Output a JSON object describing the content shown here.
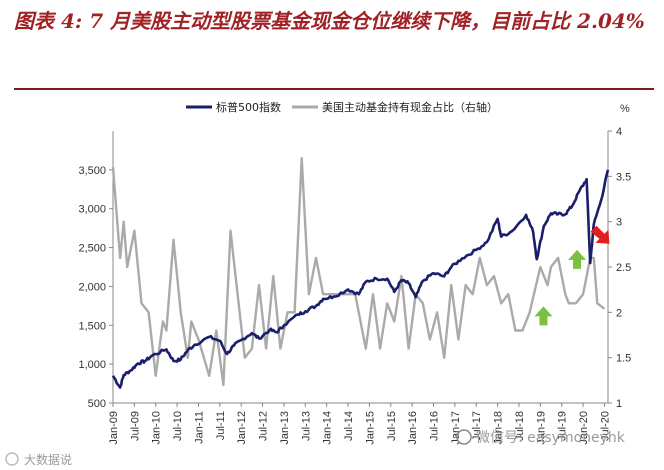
{
  "title": "图表 4: 7 月美股主动型股票基金现金仓位继续下降，目前占比 2.04%",
  "watermark": {
    "left": "大数据说",
    "right": "微信号: easymoneyhk"
  },
  "colors": {
    "title": "#a12225",
    "spx_series": "#1a1f6b",
    "cash_series": "#aaaaaa",
    "arrow_up": "#7bc043",
    "arrow_down": "#e02020"
  },
  "chart_data": {
    "type": "line",
    "legend": [
      "标普500指数",
      "美国主动基金持有现金占比（右轴）"
    ],
    "legend_position": "top-center",
    "grid": false,
    "x_ticks": [
      "Jan-09",
      "Jul-09",
      "Jan-10",
      "Jul-10",
      "Jan-11",
      "Jul-11",
      "Jan-12",
      "Jul-12",
      "Jan-13",
      "Jul-13",
      "Jan-14",
      "Jul-14",
      "Jan-15",
      "Jul-15",
      "Jan-16",
      "Jul-16",
      "Jan-17",
      "Jul-17",
      "Jan-18",
      "Jul-18",
      "Jan-19",
      "Jul-19",
      "Jan-20",
      "Jul-20"
    ],
    "x_range": [
      "Jan-09",
      "Aug-20"
    ],
    "left_axis": {
      "ylim": [
        500,
        4000
      ],
      "ticks": [
        "500",
        "1,000",
        "1,500",
        "2,000",
        "2,500",
        "3,000",
        "3,500"
      ]
    },
    "right_axis": {
      "ylim": [
        1,
        4
      ],
      "ticks": [
        "1",
        "1.5",
        "2",
        "2.5",
        "3",
        "3.5",
        "4"
      ],
      "unit": "%"
    },
    "series": [
      {
        "name": "标普500指数",
        "axis": "left",
        "points": [
          [
            "Jan-09",
            850
          ],
          [
            "Mar-09",
            700
          ],
          [
            "Apr-09",
            860
          ],
          [
            "Jun-09",
            920
          ],
          [
            "Aug-09",
            1010
          ],
          [
            "Oct-09",
            1040
          ],
          [
            "Dec-09",
            1110
          ],
          [
            "Apr-10",
            1190
          ],
          [
            "Jun-10",
            1040
          ],
          [
            "Aug-10",
            1060
          ],
          [
            "Oct-10",
            1180
          ],
          [
            "Dec-10",
            1250
          ],
          [
            "Apr-11",
            1350
          ],
          [
            "Jul-11",
            1300
          ],
          [
            "Sep-11",
            1130
          ],
          [
            "Nov-11",
            1240
          ],
          [
            "Jan-12",
            1310
          ],
          [
            "Apr-12",
            1400
          ],
          [
            "Jun-12",
            1330
          ],
          [
            "Sep-12",
            1440
          ],
          [
            "Nov-12",
            1410
          ],
          [
            "Jan-13",
            1500
          ],
          [
            "May-13",
            1640
          ],
          [
            "Jul-13",
            1680
          ],
          [
            "Oct-13",
            1750
          ],
          [
            "Dec-13",
            1840
          ],
          [
            "Mar-14",
            1870
          ],
          [
            "Jul-14",
            1960
          ],
          [
            "Oct-14",
            1900
          ],
          [
            "Dec-14",
            2060
          ],
          [
            "Mar-15",
            2100
          ],
          [
            "Jun-15",
            2100
          ],
          [
            "Aug-15",
            1930
          ],
          [
            "Oct-15",
            2080
          ],
          [
            "Dec-15",
            2040
          ],
          [
            "Feb-16",
            1860
          ],
          [
            "Apr-16",
            2070
          ],
          [
            "Jul-16",
            2170
          ],
          [
            "Oct-16",
            2130
          ],
          [
            "Dec-16",
            2250
          ],
          [
            "Mar-17",
            2360
          ],
          [
            "Jul-17",
            2470
          ],
          [
            "Oct-17",
            2570
          ],
          [
            "Jan-18",
            2870
          ],
          [
            "Feb-18",
            2640
          ],
          [
            "May-18",
            2710
          ],
          [
            "Sep-18",
            2920
          ],
          [
            "Nov-18",
            2700
          ],
          [
            "Dec-18",
            2350
          ],
          [
            "Feb-19",
            2780
          ],
          [
            "Apr-19",
            2940
          ],
          [
            "Jun-19",
            2930
          ],
          [
            "Aug-19",
            2930
          ],
          [
            "Oct-19",
            3040
          ],
          [
            "Dec-19",
            3230
          ],
          [
            "Feb-20",
            3380
          ],
          [
            "Mar-20",
            2300
          ],
          [
            "Apr-20",
            2800
          ],
          [
            "Jun-20",
            3100
          ],
          [
            "Aug-20",
            3500
          ]
        ]
      },
      {
        "name": "美国主动基金持有现金占比（右轴）",
        "axis": "right",
        "points": [
          [
            "Jan-09",
            3.6
          ],
          [
            "Mar-09",
            2.6
          ],
          [
            "Apr-09",
            3.0
          ],
          [
            "May-09",
            2.5
          ],
          [
            "Jul-09",
            2.9
          ],
          [
            "Sep-09",
            2.1
          ],
          [
            "Nov-09",
            2.0
          ],
          [
            "Jan-10",
            1.3
          ],
          [
            "Mar-10",
            1.9
          ],
          [
            "Apr-10",
            1.8
          ],
          [
            "Jun-10",
            2.8
          ],
          [
            "Aug-10",
            2.0
          ],
          [
            "Oct-10",
            1.5
          ],
          [
            "Nov-10",
            1.9
          ],
          [
            "Jan-11",
            1.7
          ],
          [
            "Apr-11",
            1.3
          ],
          [
            "Jun-11",
            1.8
          ],
          [
            "Aug-11",
            1.2
          ],
          [
            "Oct-11",
            2.9
          ],
          [
            "Dec-11",
            2.2
          ],
          [
            "Feb-12",
            1.5
          ],
          [
            "Apr-12",
            1.6
          ],
          [
            "Jun-12",
            2.3
          ],
          [
            "Aug-12",
            1.6
          ],
          [
            "Oct-12",
            2.4
          ],
          [
            "Dec-12",
            1.6
          ],
          [
            "Feb-13",
            2.0
          ],
          [
            "Apr-13",
            2.0
          ],
          [
            "Jun-13",
            3.7
          ],
          [
            "Aug-13",
            2.2
          ],
          [
            "Oct-13",
            2.6
          ],
          [
            "Dec-13",
            2.2
          ],
          [
            "Mar-14",
            2.2
          ],
          [
            "Jun-14",
            2.2
          ],
          [
            "Sep-14",
            2.2
          ],
          [
            "Dec-14",
            1.6
          ],
          [
            "Feb-15",
            2.2
          ],
          [
            "Apr-15",
            1.6
          ],
          [
            "Jun-15",
            2.1
          ],
          [
            "Aug-15",
            1.9
          ],
          [
            "Oct-15",
            2.4
          ],
          [
            "Dec-15",
            1.6
          ],
          [
            "Feb-16",
            2.2
          ],
          [
            "Apr-16",
            2.1
          ],
          [
            "Jun-16",
            1.7
          ],
          [
            "Aug-16",
            2.0
          ],
          [
            "Oct-16",
            1.5
          ],
          [
            "Dec-16",
            2.3
          ],
          [
            "Feb-17",
            1.7
          ],
          [
            "Apr-17",
            2.3
          ],
          [
            "Jun-17",
            2.2
          ],
          [
            "Aug-17",
            2.6
          ],
          [
            "Oct-17",
            2.3
          ],
          [
            "Dec-17",
            2.4
          ],
          [
            "Feb-18",
            2.1
          ],
          [
            "Apr-18",
            2.2
          ],
          [
            "Jun-18",
            1.8
          ],
          [
            "Aug-18",
            1.8
          ],
          [
            "Oct-18",
            2.0
          ],
          [
            "Jan-19",
            2.5
          ],
          [
            "Mar-19",
            2.3
          ],
          [
            "Apr-19",
            2.5
          ],
          [
            "Jun-19",
            2.6
          ],
          [
            "Aug-19",
            2.2
          ],
          [
            "Sep-19",
            2.1
          ],
          [
            "Nov-19",
            2.1
          ],
          [
            "Jan-20",
            2.2
          ],
          [
            "Mar-20",
            2.6
          ],
          [
            "Apr-20",
            2.6
          ],
          [
            "May-20",
            2.1
          ],
          [
            "Jul-20",
            2.04
          ]
        ]
      }
    ],
    "annotations": [
      {
        "type": "arrow-up",
        "color": "green",
        "near": "Mar-19"
      },
      {
        "type": "arrow-up",
        "color": "green",
        "near": "Jan-20"
      },
      {
        "type": "arrow-down",
        "color": "red",
        "near": "Jul-20"
      }
    ]
  }
}
